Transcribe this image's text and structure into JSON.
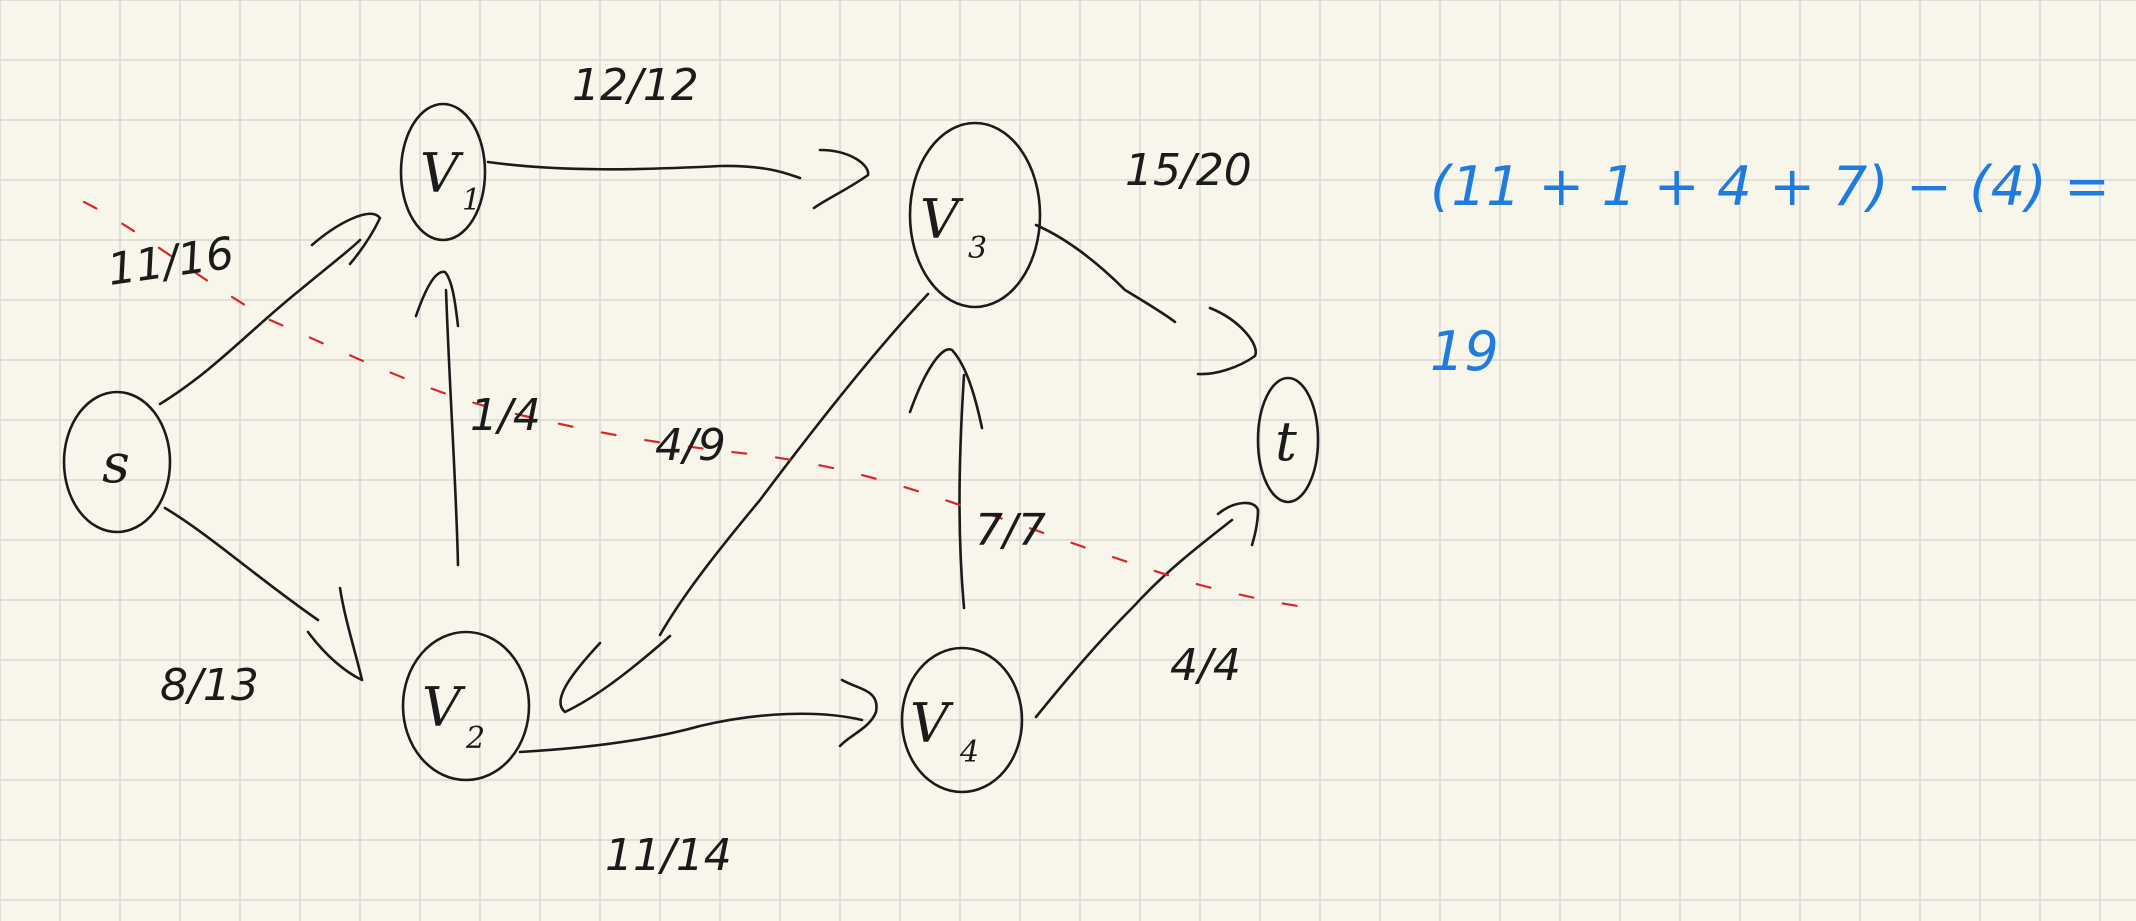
{
  "graph": {
    "nodes": [
      {
        "id": "s",
        "label": "s",
        "sub": ""
      },
      {
        "id": "v1",
        "label": "V",
        "sub": "1"
      },
      {
        "id": "v2",
        "label": "V",
        "sub": "2"
      },
      {
        "id": "v3",
        "label": "V",
        "sub": "3"
      },
      {
        "id": "v4",
        "label": "V",
        "sub": "4"
      },
      {
        "id": "t",
        "label": "t",
        "sub": ""
      }
    ],
    "edges": [
      {
        "from": "s",
        "to": "v1",
        "label": "11/16"
      },
      {
        "from": "s",
        "to": "v2",
        "label": "8/13"
      },
      {
        "from": "v2",
        "to": "v1",
        "label": "1/4"
      },
      {
        "from": "v3",
        "to": "v2",
        "label": "4/9"
      },
      {
        "from": "v1",
        "to": "v3",
        "label": "12/12"
      },
      {
        "from": "v2",
        "to": "v4",
        "label": "11/14"
      },
      {
        "from": "v4",
        "to": "v3",
        "label": "7/7"
      },
      {
        "from": "v3",
        "to": "t",
        "label": "15/20"
      },
      {
        "from": "v4",
        "to": "t",
        "label": "4/4"
      }
    ]
  },
  "calculation": {
    "expression": "(11 + 1 + 4 + 7) − (4) =",
    "result": "19"
  },
  "colors": {
    "ink": "#1b1b1b",
    "cut_line": "#d8262a",
    "calc_ink": "#1f7be0",
    "grid": "#d8d8d4",
    "paper": "#f8f6ea"
  }
}
